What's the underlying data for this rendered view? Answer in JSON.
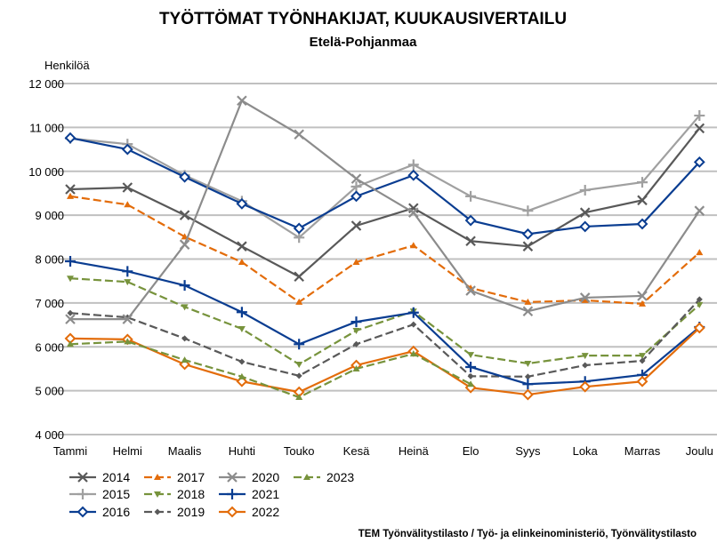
{
  "chart_data": {
    "type": "line",
    "title": "TYÖTTÖMAT TYÖNHAKIJAT, KUUKAUSIVERTAILU",
    "subtitle": "Etelä-Pohjanmaa",
    "ylabel": "Henkilöä",
    "xlabel": "",
    "ylim": [
      4000,
      12000
    ],
    "yticks": [
      4000,
      5000,
      6000,
      7000,
      8000,
      9000,
      10000,
      11000,
      12000
    ],
    "ytick_labels": [
      "4 000",
      "5 000",
      "6 000",
      "7 000",
      "8 000",
      "9 000",
      "10 000",
      "11 000",
      "12 000"
    ],
    "grid": true,
    "legend_position": "bottom-left",
    "categories": [
      "Tammi",
      "Helmi",
      "Maalis",
      "Huhti",
      "Touko",
      "Kesä",
      "Heinä",
      "Elo",
      "Syys",
      "Loka",
      "Marras",
      "Joulu"
    ],
    "series": [
      {
        "name": "2014",
        "color": "#595959",
        "dash": false,
        "marker": "x",
        "values": [
          9590,
          9630,
          9000,
          8290,
          7600,
          8760,
          9160,
          8410,
          8290,
          9060,
          9340,
          10980
        ]
      },
      {
        "name": "2015",
        "color": "#a0a0a0",
        "dash": false,
        "marker": "plus",
        "values": [
          10750,
          10620,
          9910,
          9320,
          8490,
          9650,
          10150,
          9430,
          9100,
          9570,
          9750,
          11270
        ]
      },
      {
        "name": "2016",
        "color": "#0a3d91",
        "dash": false,
        "marker": "diamond-open",
        "values": [
          10760,
          10500,
          9870,
          9260,
          8700,
          9430,
          9910,
          8880,
          8570,
          8740,
          8800,
          10210
        ]
      },
      {
        "name": "2017",
        "color": "#e36c0a",
        "dash": true,
        "marker": "triangle-up",
        "values": [
          9430,
          9240,
          8510,
          7930,
          7020,
          7930,
          8310,
          7340,
          7020,
          7060,
          6980,
          8150
        ]
      },
      {
        "name": "2018",
        "color": "#77933c",
        "dash": true,
        "marker": "triangle-down",
        "values": [
          7560,
          7480,
          6910,
          6410,
          5600,
          6370,
          6810,
          5820,
          5620,
          5800,
          5800,
          6960
        ]
      },
      {
        "name": "2019",
        "color": "#595959",
        "dash": true,
        "marker": "diamond",
        "values": [
          6770,
          6670,
          6190,
          5660,
          5340,
          6060,
          6510,
          5330,
          5320,
          5580,
          5680,
          7080
        ]
      },
      {
        "name": "2020",
        "color": "#8c8c8c",
        "dash": false,
        "marker": "x",
        "values": [
          6630,
          6630,
          8330,
          11610,
          10840,
          9830,
          9060,
          7280,
          6810,
          7120,
          7160,
          9100
        ]
      },
      {
        "name": "2021",
        "color": "#0a3d91",
        "dash": false,
        "marker": "plus",
        "values": [
          7950,
          7720,
          7400,
          6790,
          6060,
          6570,
          6780,
          5540,
          5150,
          5210,
          5360,
          6450
        ]
      },
      {
        "name": "2022",
        "color": "#e36c0a",
        "dash": false,
        "marker": "diamond-open",
        "values": [
          6190,
          6170,
          5600,
          5210,
          4970,
          5580,
          5900,
          5070,
          4910,
          5090,
          5210,
          6430
        ]
      },
      {
        "name": "2023",
        "color": "#77933c",
        "dash": true,
        "marker": "triangle-up",
        "values": [
          6060,
          6120,
          5700,
          5320,
          4850,
          5500,
          5840,
          5150,
          null,
          null,
          null,
          null
        ]
      }
    ],
    "source": "TEM Työnvälitystilasto / Työ- ja elinkeinoministeriö, Työnvälitystilasto"
  }
}
